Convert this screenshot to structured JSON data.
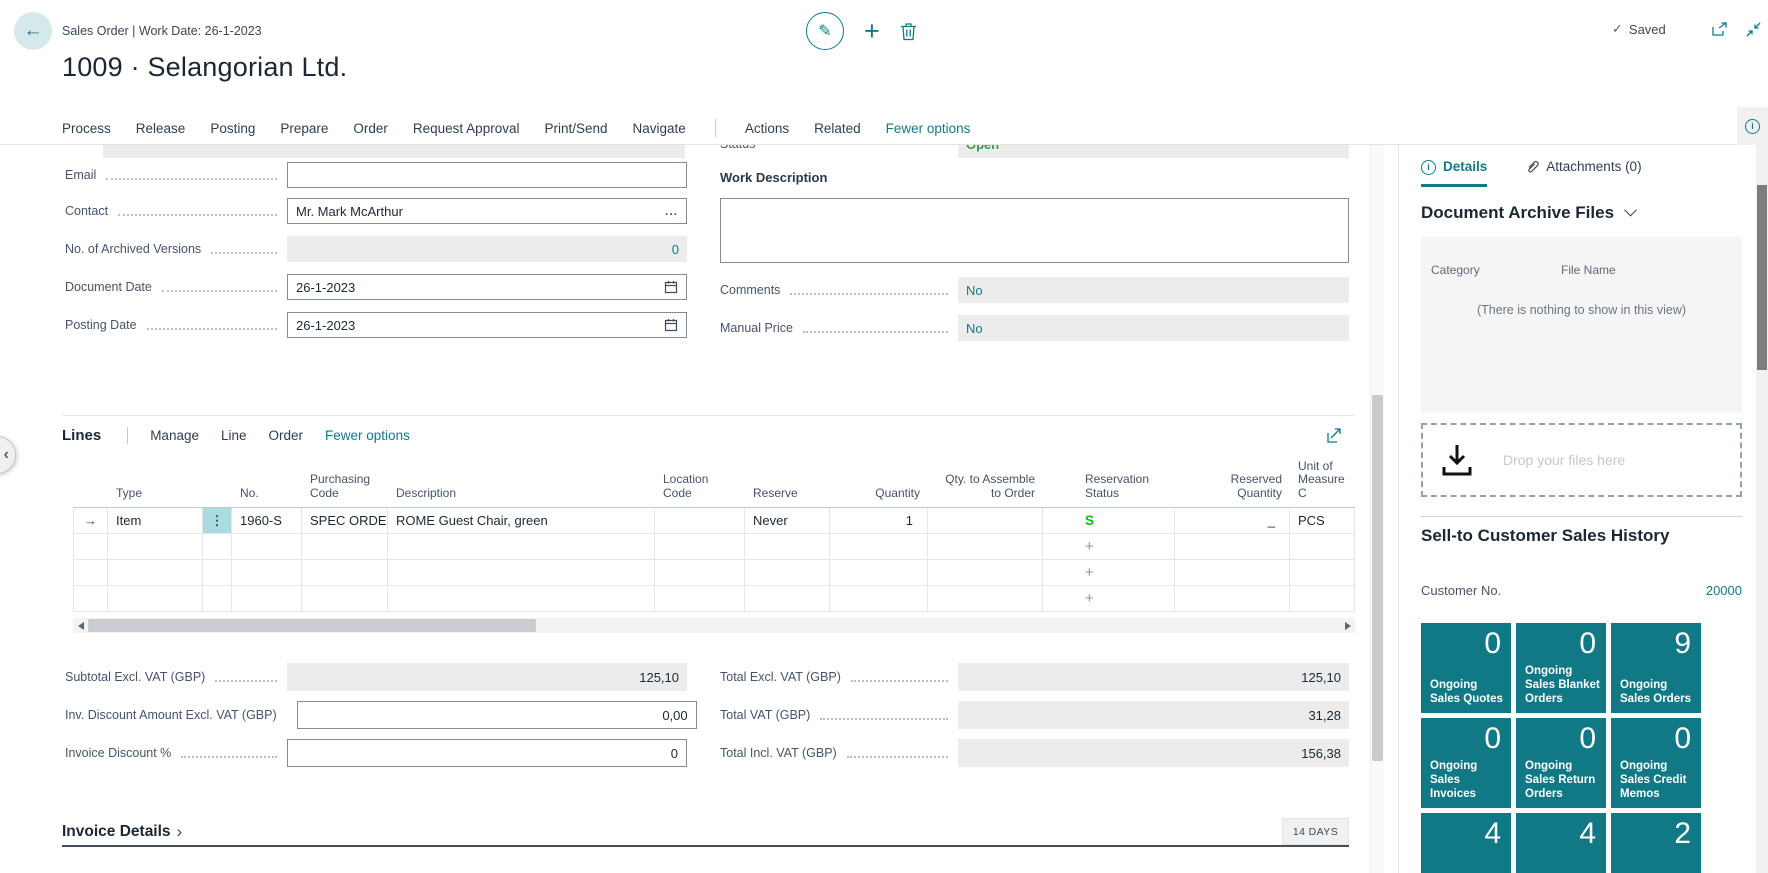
{
  "colors": {
    "accent": "#0f7b87",
    "tile": "#117985",
    "status_green": "#0ac10a",
    "open_green": "#2f9e44"
  },
  "titlebar": {
    "breadcrumb": "Sales Order | Work Date: 26-1-2023",
    "saved": "Saved"
  },
  "page": {
    "title": "1009 · Selangorian Ltd."
  },
  "ribbon": {
    "items": [
      "Process",
      "Release",
      "Posting",
      "Prepare",
      "Order",
      "Request Approval",
      "Print/Send",
      "Navigate"
    ],
    "secondary": [
      "Actions",
      "Related"
    ],
    "fewer_options": "Fewer options"
  },
  "general": {
    "clipped": {
      "status_label": "Status",
      "status_value": "Open"
    },
    "left_fields": [
      {
        "label": "Email",
        "value": "",
        "kind": "text"
      },
      {
        "label": "Contact",
        "value": "Mr. Mark McArthur",
        "kind": "assist"
      },
      {
        "label": "No. of Archived Versions",
        "value": "0",
        "kind": "readonly-number"
      },
      {
        "label": "Document Date",
        "value": "26-1-2023",
        "kind": "date"
      },
      {
        "label": "Posting Date",
        "value": "26-1-2023",
        "kind": "date"
      }
    ],
    "work_description": {
      "label": "Work Description",
      "value": ""
    },
    "right_fields": [
      {
        "label": "Comments",
        "value": "No"
      },
      {
        "label": "Manual Price",
        "value": "No"
      }
    ]
  },
  "lines": {
    "title": "Lines",
    "menu": [
      "Manage",
      "Line",
      "Order"
    ],
    "fewer_options": "Fewer options",
    "columns": [
      {
        "label": "",
        "align": "left"
      },
      {
        "label": "Type",
        "align": "left"
      },
      {
        "label": "",
        "align": "left"
      },
      {
        "label": "No.",
        "align": "left"
      },
      {
        "label": "Purchasing Code",
        "align": "left"
      },
      {
        "label": "Description",
        "align": "left"
      },
      {
        "label": "Location Code",
        "align": "left"
      },
      {
        "label": "Reserve",
        "align": "left"
      },
      {
        "label": "Quantity",
        "align": "right"
      },
      {
        "label": "Qty. to Assemble to Order",
        "align": "right"
      },
      {
        "label": "Reservation Status",
        "align": "left"
      },
      {
        "label": "Reserved Quantity",
        "align": "right"
      },
      {
        "label": "Unit of Measure C",
        "align": "left"
      }
    ],
    "row": {
      "marker": "→",
      "type": "Item",
      "menu_dots": "⋮",
      "no": "1960-S",
      "purchasing_code": "SPEC ORDER",
      "description": "ROME Guest Chair, green",
      "location_code": "",
      "reserve": "Never",
      "quantity": "1",
      "qty_to_assemble": "",
      "reservation_status": "S",
      "reserved_quantity": "_",
      "unit_of_measure": "PCS"
    },
    "empty_rows": 3,
    "empty_row_plus": "+",
    "totals_left": [
      {
        "label": "Subtotal Excl. VAT (GBP)",
        "value": "125,10",
        "readonly": true
      },
      {
        "label": "Inv. Discount Amount Excl. VAT (GBP)",
        "value": "0,00",
        "readonly": false
      },
      {
        "label": "Invoice Discount %",
        "value": "0",
        "readonly": false
      }
    ],
    "totals_right": [
      {
        "label": "Total Excl. VAT (GBP)",
        "value": "125,10",
        "readonly": true
      },
      {
        "label": "Total VAT (GBP)",
        "value": "31,28",
        "readonly": true
      },
      {
        "label": "Total Incl. VAT (GBP)",
        "value": "156,38",
        "readonly": true
      }
    ]
  },
  "invoice_details": {
    "title": "Invoice Details",
    "badge": "14 DAYS"
  },
  "factbox": {
    "tabs": [
      {
        "label": "Details",
        "icon": "info-circle-icon",
        "active": true
      },
      {
        "label": "Attachments (0)",
        "icon": "paperclip-icon",
        "active": false
      }
    ],
    "archive": {
      "title": "Document Archive Files",
      "columns": [
        "Category",
        "File Name"
      ],
      "empty_text": "(There is nothing to show in this view)",
      "drop_text": "Drop your files here"
    },
    "history": {
      "title": "Sell-to Customer Sales History",
      "customer_label": "Customer No.",
      "customer_no": "20000",
      "tiles": [
        {
          "value": "0",
          "label": "Ongoing Sales Quotes"
        },
        {
          "value": "0",
          "label": "Ongoing Sales Blanket Orders"
        },
        {
          "value": "9",
          "label": "Ongoing Sales Orders"
        },
        {
          "value": "0",
          "label": "Ongoing Sales Invoices"
        },
        {
          "value": "0",
          "label": "Ongoing Sales Return Orders"
        },
        {
          "value": "0",
          "label": "Ongoing Sales Credit Memos"
        },
        {
          "value": "4",
          "label": ""
        },
        {
          "value": "4",
          "label": ""
        },
        {
          "value": "2",
          "label": ""
        }
      ]
    }
  }
}
